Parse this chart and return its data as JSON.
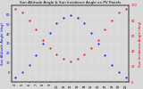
{
  "title": "Sun Altitude Angle & Sun Incidence Angle on PV Panels",
  "ylabel_left": "Sun Altitude Angle (deg)",
  "ylabel_right": "Sun Incidence Angle (deg)",
  "background_color": "#d8d8d8",
  "grid_color": "#ffffff",
  "blue_color": "#0000dd",
  "red_color": "#dd0000",
  "time_hours": [
    4,
    5,
    6,
    7,
    8,
    9,
    10,
    11,
    12,
    13,
    14,
    15,
    16,
    17,
    18,
    19,
    20
  ],
  "altitude_angles": [
    -5,
    0,
    8,
    18,
    30,
    41,
    51,
    57,
    60,
    57,
    51,
    41,
    30,
    18,
    8,
    0,
    -5
  ],
  "incidence_angles": [
    95,
    90,
    80,
    68,
    55,
    44,
    36,
    30,
    27,
    30,
    36,
    44,
    55,
    68,
    80,
    90,
    95
  ],
  "ylim_left": [
    -10,
    70
  ],
  "ylim_right": [
    0,
    100
  ],
  "yticks_left": [
    0,
    10,
    20,
    30,
    40,
    50,
    60
  ],
  "yticks_right": [
    0,
    20,
    40,
    60,
    80,
    100
  ],
  "xtick_labels": [
    "4",
    "5",
    "6",
    "7",
    "8",
    "9",
    "10",
    "11",
    "12",
    "13",
    "14",
    "15",
    "16",
    "17",
    "18",
    "19",
    "20"
  ],
  "title_fontsize": 3.0,
  "tick_fontsize": 2.5,
  "label_fontsize": 2.8,
  "marker_size": 1.0,
  "figsize": [
    1.6,
    1.0
  ],
  "dpi": 100
}
